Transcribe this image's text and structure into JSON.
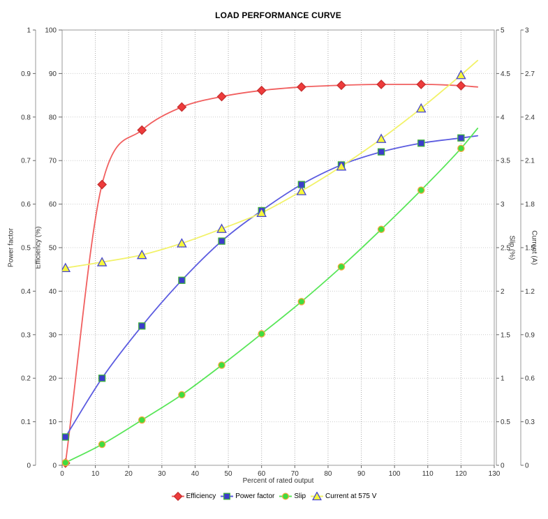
{
  "title": "LOAD PERFORMANCE CURVE",
  "chart_data": {
    "type": "line",
    "title": "LOAD PERFORMANCE CURVE",
    "xlabel": "Percent of rated output",
    "grid": true,
    "legend_position": "bottom",
    "x_axis": {
      "min": 0,
      "max": 130,
      "tick_step": 10
    },
    "y_axes": [
      {
        "id": "power_factor",
        "label": "Power factor",
        "position": "left-outer",
        "min": 0,
        "max": 1,
        "tick_step": 0.1
      },
      {
        "id": "efficiency",
        "label": "Efficiency (%)",
        "position": "left-inner",
        "min": 0,
        "max": 100,
        "tick_step": 10
      },
      {
        "id": "slip",
        "label": "Slip (%)",
        "position": "right-inner",
        "min": 0,
        "max": 5,
        "tick_step": 0.5
      },
      {
        "id": "current",
        "label": "Current (A)",
        "position": "right-outer",
        "min": 0,
        "max": 3,
        "tick_step": 0.3
      }
    ],
    "x": [
      1,
      12,
      24,
      36,
      48,
      60,
      72,
      84,
      96,
      108,
      120
    ],
    "series": [
      {
        "name": "Efficiency",
        "legend_label": "Efficiency",
        "axis": "efficiency",
        "marker": "diamond",
        "line_color": "#f15f5f",
        "marker_fill": "#ee3b3b",
        "marker_edge": "#c62f2f",
        "values": [
          0.5,
          64.5,
          77.0,
          82.3,
          84.7,
          86.1,
          86.9,
          87.3,
          87.5,
          87.5,
          87.2
        ],
        "trend_end": {
          "x": 125,
          "value": 86.9
        }
      },
      {
        "name": "Power factor",
        "legend_label": "Power factor",
        "axis": "power_factor",
        "marker": "square",
        "line_color": "#5b5be0",
        "marker_fill": "#3c3ccc",
        "marker_edge": "#3faf3f",
        "values": [
          0.065,
          0.2,
          0.32,
          0.425,
          0.515,
          0.585,
          0.645,
          0.69,
          0.72,
          0.74,
          0.752
        ],
        "trend_end": {
          "x": 125,
          "value": 0.757
        }
      },
      {
        "name": "Slip",
        "legend_label": "Slip",
        "axis": "slip",
        "marker": "circle",
        "line_color": "#58e658",
        "marker_fill": "#3fdc3f",
        "marker_edge": "#f2a93c",
        "values": [
          0.03,
          0.24,
          0.52,
          0.81,
          1.15,
          1.51,
          1.88,
          2.28,
          2.71,
          3.16,
          3.64
        ],
        "trend_end": {
          "x": 125,
          "value": 3.87
        }
      },
      {
        "name": "Current",
        "legend_label": "Current at 575 V",
        "axis": "current",
        "marker": "triangle",
        "line_color": "#f2f268",
        "marker_fill": "#f7f73a",
        "marker_edge": "#4747cf",
        "values": [
          1.36,
          1.4,
          1.45,
          1.53,
          1.63,
          1.74,
          1.89,
          2.06,
          2.25,
          2.46,
          2.69
        ],
        "trend_end": {
          "x": 125,
          "value": 2.79
        }
      }
    ]
  }
}
